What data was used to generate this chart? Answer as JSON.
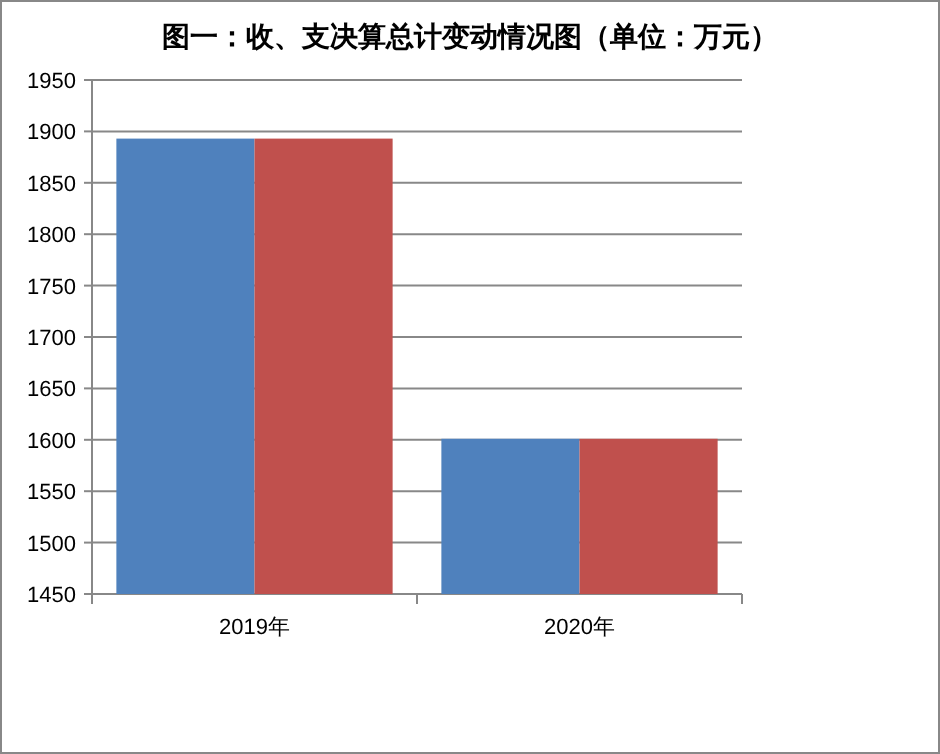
{
  "chart_data": {
    "type": "bar",
    "title": "图一：收、支决算总计变动情况图（单位：万元）",
    "categories": [
      "2019年",
      "2020年"
    ],
    "series": [
      {
        "color": "#4f81bd",
        "values": [
          1893,
          1601
        ]
      },
      {
        "color": "#c0504d",
        "values": [
          1893,
          1601
        ]
      }
    ],
    "ylim": [
      1450,
      1950
    ],
    "yticks": [
      1450,
      1500,
      1550,
      1600,
      1650,
      1700,
      1750,
      1800,
      1850,
      1900,
      1950
    ],
    "grid": "y"
  }
}
